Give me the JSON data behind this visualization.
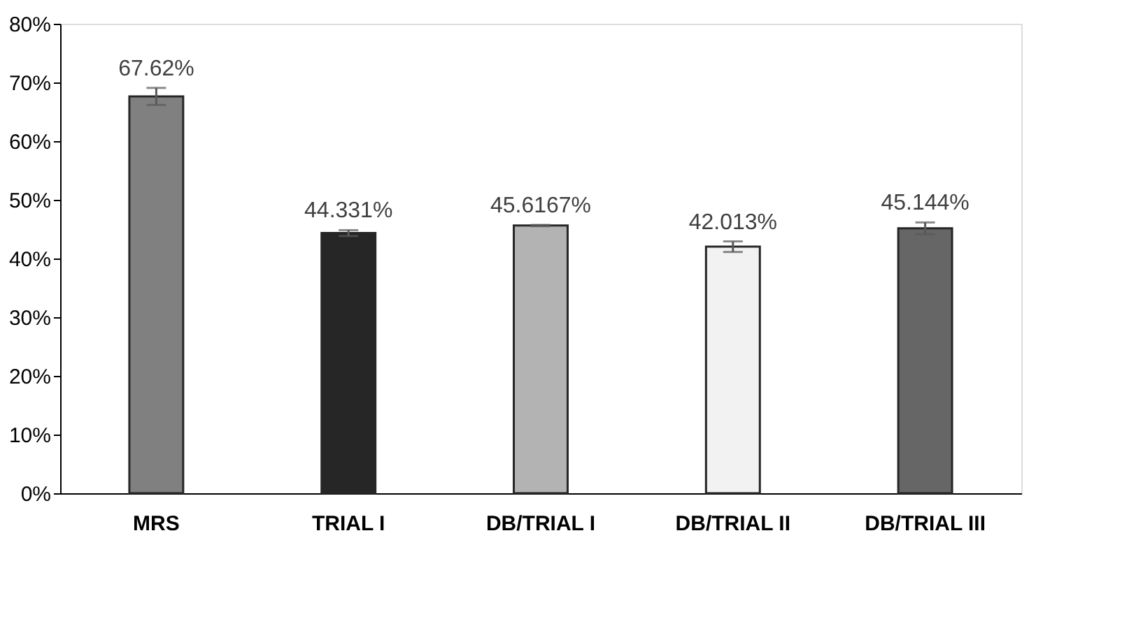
{
  "chart_data": {
    "type": "bar",
    "categories": [
      "MRS",
      "TRIAL I",
      "DB/TRIAL I",
      "DB/TRIAL II",
      "DB/TRIAL III"
    ],
    "values": [
      67.62,
      44.331,
      45.6167,
      42.013,
      45.144
    ],
    "colors": [
      "#808080",
      "#262626",
      "#b3b3b3",
      "#f2f2f2",
      "#666666"
    ],
    "errors": [
      1.45,
      0.5,
      0.1,
      0.9,
      1.0
    ],
    "value_labels": [
      "67.62%",
      "44.331%",
      "45.6167%",
      "42.013%",
      "45.144%"
    ],
    "ylim": [
      0,
      80
    ],
    "yticks": [
      {
        "value": 0,
        "label": "0%"
      },
      {
        "value": 10,
        "label": "10%"
      },
      {
        "value": 20,
        "label": "20%"
      },
      {
        "value": 30,
        "label": "30%"
      },
      {
        "value": 40,
        "label": "40%"
      },
      {
        "value": 50,
        "label": "50%"
      },
      {
        "value": 60,
        "label": "60%"
      },
      {
        "value": 70,
        "label": "70%"
      },
      {
        "value": 80,
        "label": "80%"
      }
    ],
    "grid": false
  }
}
